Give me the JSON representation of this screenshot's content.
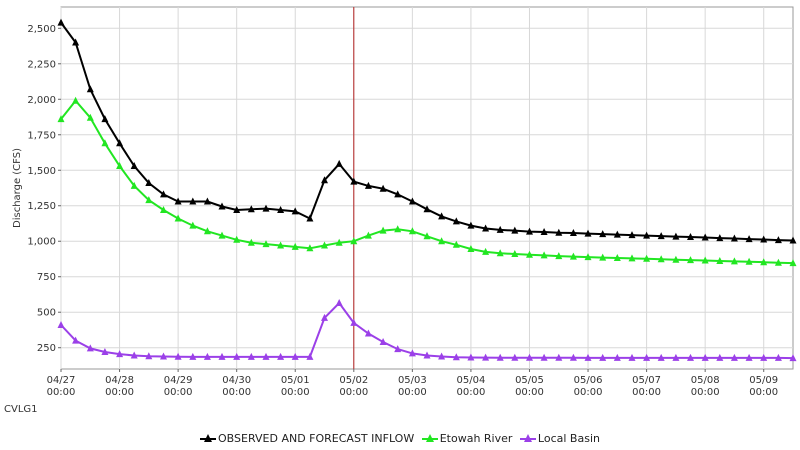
{
  "station_label": "CVLG1",
  "chart_data": {
    "type": "line",
    "title": "",
    "xlabel": "",
    "ylabel": "Discharge (CFS)",
    "ylim": [
      100,
      2650
    ],
    "yticks": [
      250,
      500,
      750,
      1000,
      1250,
      1500,
      1750,
      2000,
      2250,
      2500
    ],
    "ytick_labels": [
      "250",
      "500",
      "750",
      "1,000",
      "1,250",
      "1,500",
      "1,750",
      "2,000",
      "2,250",
      "2,500"
    ],
    "x_step_hours": 6,
    "xlim_hours": [
      0,
      300
    ],
    "x_tick_labels": [
      [
        "04/27",
        "00:00"
      ],
      [
        "04/28",
        "00:00"
      ],
      [
        "04/29",
        "00:00"
      ],
      [
        "04/30",
        "00:00"
      ],
      [
        "05/01",
        "00:00"
      ],
      [
        "05/02",
        "00:00"
      ],
      [
        "05/03",
        "00:00"
      ],
      [
        "05/04",
        "00:00"
      ],
      [
        "05/05",
        "00:00"
      ],
      [
        "05/06",
        "00:00"
      ],
      [
        "05/07",
        "00:00"
      ],
      [
        "05/08",
        "00:00"
      ],
      [
        "05/09",
        "00:00"
      ]
    ],
    "forecast_start": "05/02 00:00",
    "grid": true,
    "legend_position": "bottom",
    "series": [
      {
        "name": "OBSERVED AND FORECAST INFLOW",
        "color": "#000000",
        "values": [
          2540,
          2400,
          2070,
          1860,
          1690,
          1530,
          1410,
          1330,
          1280,
          1280,
          1280,
          1245,
          1220,
          1225,
          1230,
          1220,
          1210,
          1160,
          1430,
          1545,
          1420,
          1390,
          1370,
          1330,
          1280,
          1225,
          1175,
          1140,
          1110,
          1090,
          1080,
          1075,
          1068,
          1065,
          1060,
          1058,
          1054,
          1050,
          1047,
          1043,
          1040,
          1036,
          1033,
          1030,
          1026,
          1022,
          1019,
          1015,
          1012,
          1008,
          1005
        ]
      },
      {
        "name": "Etowah River",
        "color": "#22e622",
        "values": [
          1860,
          1990,
          1870,
          1690,
          1530,
          1390,
          1290,
          1220,
          1160,
          1110,
          1070,
          1040,
          1010,
          990,
          980,
          970,
          960,
          950,
          970,
          990,
          1000,
          1040,
          1075,
          1085,
          1070,
          1035,
          1000,
          975,
          945,
          925,
          915,
          910,
          905,
          900,
          895,
          892,
          888,
          885,
          882,
          879,
          876,
          873,
          870,
          867,
          864,
          861,
          858,
          855,
          852,
          849,
          846
        ]
      },
      {
        "name": "Local Basin",
        "color": "#9b40e8",
        "values": [
          410,
          300,
          245,
          220,
          205,
          195,
          190,
          188,
          186,
          185,
          185,
          185,
          185,
          185,
          185,
          185,
          185,
          185,
          460,
          565,
          425,
          350,
          290,
          240,
          210,
          195,
          188,
          183,
          181,
          180,
          179,
          179,
          179,
          179,
          179,
          179,
          178,
          178,
          178,
          178,
          178,
          178,
          178,
          178,
          178,
          178,
          178,
          178,
          178,
          178,
          177
        ]
      }
    ]
  }
}
